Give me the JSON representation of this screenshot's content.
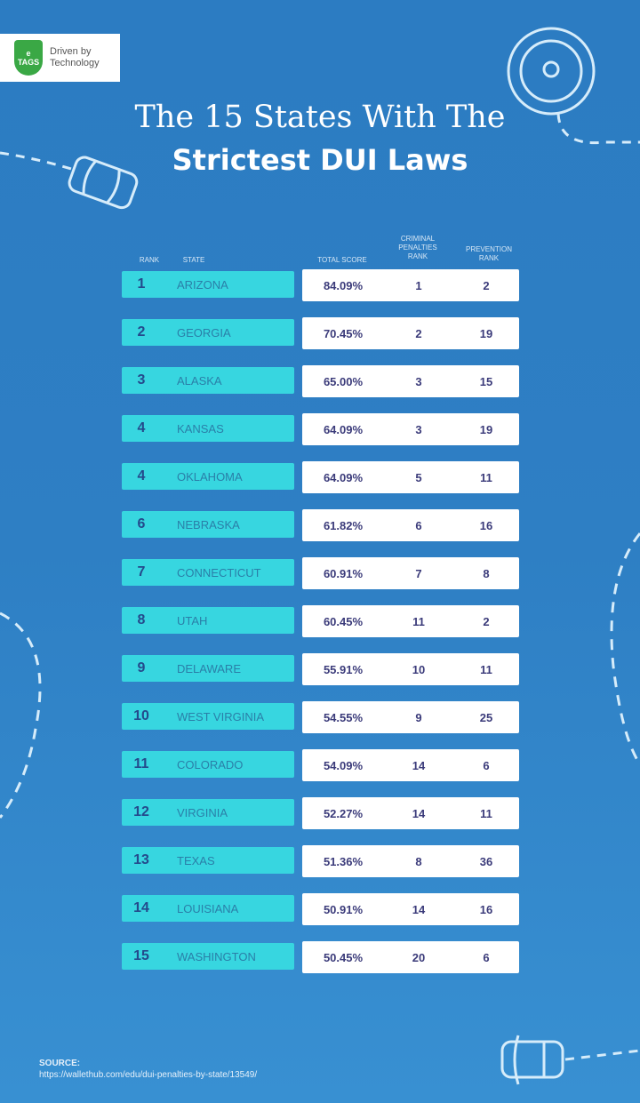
{
  "logo": {
    "brand": "TAGS",
    "tagline_1": "Driven by",
    "tagline_2": "Technology"
  },
  "title": {
    "line1": "The 15 States With The",
    "line2": "Strictest DUI Laws"
  },
  "table": {
    "headers": {
      "rank": "RANK",
      "state": "STATE",
      "total_score": "TOTAL SCORE",
      "criminal_1": "CRIMINAL",
      "criminal_2": "PENALTIES",
      "criminal_3": "RANK",
      "prevention_1": "PREVENTION",
      "prevention_2": "RANK"
    },
    "rows": [
      {
        "rank": "1",
        "state": "ARIZONA",
        "score": "84.09%",
        "criminal": "1",
        "prevention": "2"
      },
      {
        "rank": "2",
        "state": "GEORGIA",
        "score": "70.45%",
        "criminal": "2",
        "prevention": "19"
      },
      {
        "rank": "3",
        "state": "ALASKA",
        "score": "65.00%",
        "criminal": "3",
        "prevention": "15"
      },
      {
        "rank": "4",
        "state": "KANSAS",
        "score": "64.09%",
        "criminal": "3",
        "prevention": "19"
      },
      {
        "rank": "4",
        "state": "OKLAHOMA",
        "score": "64.09%",
        "criminal": "5",
        "prevention": "11"
      },
      {
        "rank": "6",
        "state": "NEBRASKA",
        "score": "61.82%",
        "criminal": "6",
        "prevention": "16"
      },
      {
        "rank": "7",
        "state": "CONNECTICUT",
        "score": "60.91%",
        "criminal": "7",
        "prevention": "8"
      },
      {
        "rank": "8",
        "state": "UTAH",
        "score": "60.45%",
        "criminal": "11",
        "prevention": "2"
      },
      {
        "rank": "9",
        "state": "DELAWARE",
        "score": "55.91%",
        "criminal": "10",
        "prevention": "11"
      },
      {
        "rank": "10",
        "state": "WEST VIRGINIA",
        "score": "54.55%",
        "criminal": "9",
        "prevention": "25"
      },
      {
        "rank": "11",
        "state": "COLORADO",
        "score": "54.09%",
        "criminal": "14",
        "prevention": "6"
      },
      {
        "rank": "12",
        "state": "VIRGINIA",
        "score": "52.27%",
        "criminal": "14",
        "prevention": "11"
      },
      {
        "rank": "13",
        "state": "TEXAS",
        "score": "51.36%",
        "criminal": "8",
        "prevention": "36"
      },
      {
        "rank": "14",
        "state": "LOUISIANA",
        "score": "50.91%",
        "criminal": "14",
        "prevention": "16"
      },
      {
        "rank": "15",
        "state": "WASHINGTON",
        "score": "50.45%",
        "criminal": "20",
        "prevention": "6"
      }
    ]
  },
  "source": {
    "label": "SOURCE:",
    "url": "https://wallethub.com/edu/dui-penalties-by-state/13549/"
  },
  "colors": {
    "background": "#2e7fc4",
    "state_cell": "#37d6e0",
    "rank_text": "#244a8c",
    "value_text": "#3b3b7a"
  }
}
